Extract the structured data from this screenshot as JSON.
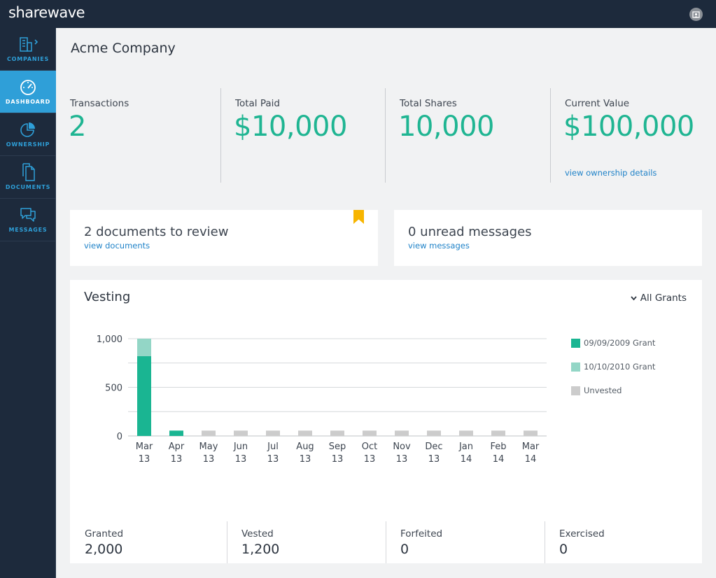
{
  "app": {
    "logo": "sharewave"
  },
  "sidebar": {
    "items": [
      {
        "label": "COMPANIES",
        "icon": "building-icon"
      },
      {
        "label": "DASHBOARD",
        "icon": "gauge-icon"
      },
      {
        "label": "OWNERSHIP",
        "icon": "pie-chart-icon"
      },
      {
        "label": "DOCUMENTS",
        "icon": "documents-icon"
      },
      {
        "label": "MESSAGES",
        "icon": "chat-bubbles-icon"
      }
    ],
    "active": "DASHBOARD"
  },
  "page": {
    "title": "Acme Company"
  },
  "stats": [
    {
      "label": "Transactions",
      "value": "2"
    },
    {
      "label": "Total Paid",
      "value": "$10,000"
    },
    {
      "label": "Total Shares",
      "value": "10,000"
    },
    {
      "label": "Current Value",
      "value": "$100,000",
      "link": "view ownership details"
    }
  ],
  "cards": {
    "documents": {
      "title": "2 documents to review",
      "link": "view documents"
    },
    "messages": {
      "title": "0 unread messages",
      "link": "view messages"
    }
  },
  "vesting": {
    "title": "Vesting",
    "filter": "All Grants",
    "summary": [
      {
        "label": "Granted",
        "value": "2,000"
      },
      {
        "label": "Vested",
        "value": "1,200"
      },
      {
        "label": "Forfeited",
        "value": "0"
      },
      {
        "label": "Exercised",
        "value": "0"
      }
    ]
  },
  "colors": {
    "accent": "#1fb592",
    "link": "#1f82c8",
    "sidebar_bg": "#1d2a3c",
    "active_nav": "#2f9fd8",
    "bookmark": "#f7b500"
  },
  "chart_data": {
    "type": "bar",
    "stacked": true,
    "categories": [
      "Mar 13",
      "Apr 13",
      "May 13",
      "Jun 13",
      "Jul 13",
      "Aug 13",
      "Sep 13",
      "Oct 13",
      "Nov 13",
      "Dec 13",
      "Jan 14",
      "Feb 14",
      "Mar 14"
    ],
    "series": [
      {
        "name": "09/09/2009 Grant",
        "color": "#1ab592",
        "values": [
          820,
          55,
          0,
          0,
          0,
          0,
          0,
          0,
          0,
          0,
          0,
          0,
          0
        ]
      },
      {
        "name": "10/10/2010 Grant",
        "color": "#93d6c6",
        "values": [
          180,
          0,
          0,
          0,
          0,
          0,
          0,
          0,
          0,
          0,
          0,
          0,
          0
        ]
      },
      {
        "name": "Unvested",
        "color": "#cccccc",
        "values": [
          0,
          0,
          55,
          55,
          55,
          55,
          55,
          55,
          55,
          55,
          55,
          55,
          55
        ]
      }
    ],
    "yticks": [
      "0",
      "500",
      "1,000"
    ],
    "ylim": [
      0,
      1000
    ],
    "grid": true,
    "legend": "right"
  }
}
